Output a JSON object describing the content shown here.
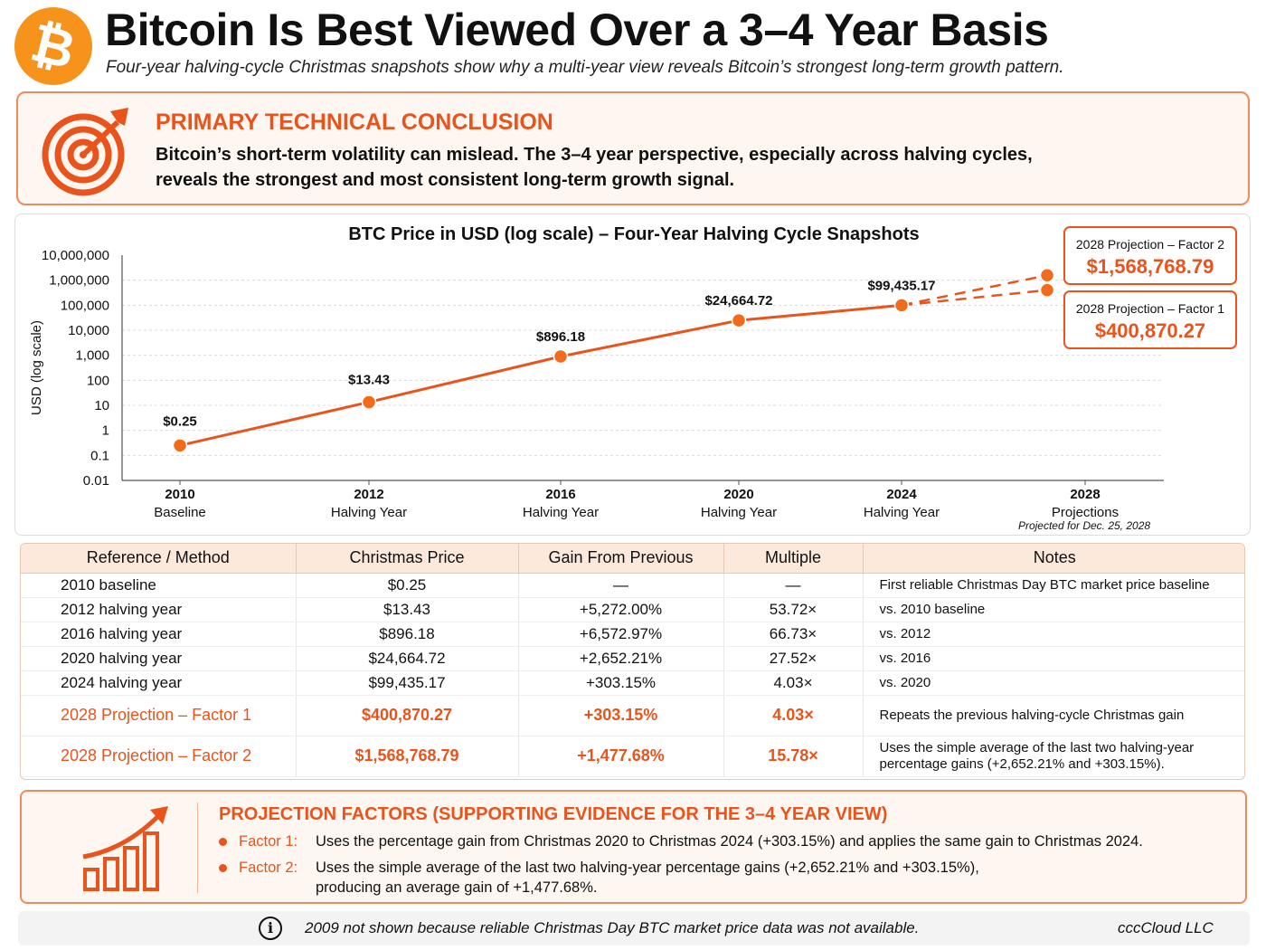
{
  "header": {
    "logo_symbol": "₿",
    "logo_icon": "bitcoin-icon",
    "title": "Bitcoin Is Best Viewed Over a 3–4 Year Basis",
    "subtitle": "Four-year halving-cycle Christmas snapshots show why a multi-year view reveals Bitcoin’s strongest long-term growth pattern."
  },
  "conclusion": {
    "icon": "target-icon",
    "title": "PRIMARY TECHNICAL CONCLUSION",
    "text": "Bitcoin’s short-term volatility can mislead. The 3–4 year perspective, especially across halving cycles, reveals the strongest and most consistent long-term growth signal."
  },
  "chart_data": {
    "type": "line",
    "title": "BTC Price in USD (log scale) – Four-Year Halving Cycle Snapshots",
    "ylabel": "USD (log scale)",
    "xlabel": "",
    "y_scale": "log",
    "ylim": [
      0.01,
      10000000
    ],
    "y_ticks": [
      "10,000,000",
      "1,000,000",
      "100,000",
      "10,000",
      "1,000",
      "100",
      "10",
      "1",
      "0.1",
      "0.01"
    ],
    "y_tick_values": [
      10000000,
      1000000,
      100000,
      10000,
      1000,
      100,
      10,
      1,
      0.1,
      0.01
    ],
    "grid": true,
    "x_categories": [
      {
        "year": "2010",
        "label": "Baseline"
      },
      {
        "year": "2012",
        "label": "Halving Year"
      },
      {
        "year": "2016",
        "label": "Halving Year"
      },
      {
        "year": "2020",
        "label": "Halving Year"
      },
      {
        "year": "2024",
        "label": "Halving Year"
      },
      {
        "year": "2028",
        "label": "Projections",
        "note": "Projected for Dec. 25, 2028"
      }
    ],
    "series": [
      {
        "values": [
          0.25,
          13.43,
          896.18,
          24664.72,
          99435.17
        ],
        "labels": [
          "$0.25",
          "$13.43",
          "$896.18",
          "$24,664.72",
          "$99,435.17"
        ]
      }
    ],
    "projections": [
      {
        "name": "2028 Projection – Factor 2",
        "value": 1568768.79,
        "label": "$1,568,768.79"
      },
      {
        "name": "2028 Projection – Factor 1",
        "value": 400870.27,
        "label": "$400,870.27"
      }
    ],
    "colors": {
      "line": "#e8541c",
      "marker": "#f26a1b",
      "grid": "#d9d9d9"
    }
  },
  "table": {
    "headers": [
      "Reference / Method",
      "Christmas Price",
      "Gain From Previous",
      "Multiple",
      "Notes"
    ],
    "rows": [
      [
        "2010 baseline",
        "$0.25",
        "—",
        "—",
        "First reliable Christmas Day BTC market price baseline"
      ],
      [
        "2012 halving year",
        "$13.43",
        "+5,272.00%",
        "53.72×",
        "vs. 2010 baseline"
      ],
      [
        "2016 halving year",
        "$896.18",
        "+6,572.97%",
        "66.73×",
        "vs. 2012"
      ],
      [
        "2020 halving year",
        "$24,664.72",
        "+2,652.21%",
        "27.52×",
        "vs. 2016"
      ],
      [
        "2024 halving year",
        "$99,435.17",
        "+303.15%",
        "4.03×",
        "vs. 2020"
      ],
      [
        "2028 Projection – Factor 1",
        "$400,870.27",
        "+303.15%",
        "4.03×",
        "Repeats the previous halving-cycle Christmas gain"
      ],
      [
        "2028 Projection – Factor 2",
        "$1,568,768.79",
        "+1,477.68%",
        "15.78×",
        "Uses the simple average of the last two halving-year percentage gains (+2,652.21% and +303.15%)."
      ]
    ]
  },
  "factors": {
    "icon": "growth-chart-icon",
    "title": "PROJECTION FACTORS (SUPPORTING EVIDENCE FOR THE 3–4 YEAR VIEW)",
    "items": [
      {
        "label": "Factor 1:",
        "text": "Uses the percentage gain from Christmas 2020 to Christmas 2024 (+303.15%) and applies the same gain to Christmas 2024."
      },
      {
        "label": "Factor 2:",
        "text": "Uses the simple average of the last two halving-year percentage gains (+2,652.21% and +303.15%), producing an average gain of +1,477.68%."
      }
    ]
  },
  "footer": {
    "icon": "info-icon",
    "text": "2009 not shown because reliable Christmas Day BTC market price data was not available.",
    "brand": "cccCloud LLC"
  }
}
